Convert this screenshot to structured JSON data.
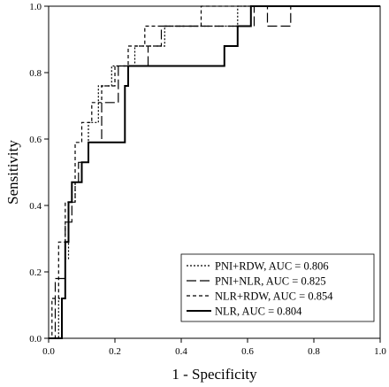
{
  "chart_data": {
    "type": "line",
    "xlabel": "1 - Specificity",
    "ylabel": "Sensitivity",
    "xlim": [
      0,
      1
    ],
    "ylim": [
      0,
      1
    ],
    "xticks": [
      "0.0",
      "0.2",
      "0.4",
      "0.6",
      "0.8",
      "1.0"
    ],
    "yticks": [
      "0.0",
      "0.2",
      "0.4",
      "0.6",
      "0.8",
      "1.0"
    ],
    "grid": false,
    "legend_position": "bottom-right",
    "series": [
      {
        "name": "PNI+RDW, AUC = 0.806",
        "dash": "dotted",
        "points": [
          [
            0,
            0
          ],
          [
            0.03,
            0
          ],
          [
            0.03,
            0.12
          ],
          [
            0.05,
            0.12
          ],
          [
            0.05,
            0.24
          ],
          [
            0.06,
            0.24
          ],
          [
            0.06,
            0.41
          ],
          [
            0.08,
            0.41
          ],
          [
            0.08,
            0.47
          ],
          [
            0.1,
            0.47
          ],
          [
            0.1,
            0.53
          ],
          [
            0.12,
            0.53
          ],
          [
            0.12,
            0.65
          ],
          [
            0.15,
            0.65
          ],
          [
            0.15,
            0.76
          ],
          [
            0.19,
            0.76
          ],
          [
            0.19,
            0.82
          ],
          [
            0.26,
            0.82
          ],
          [
            0.26,
            0.88
          ],
          [
            0.35,
            0.88
          ],
          [
            0.35,
            0.94
          ],
          [
            0.57,
            0.94
          ],
          [
            0.57,
            1.0
          ],
          [
            1.0,
            1.0
          ]
        ]
      },
      {
        "name": "PNI+NLR, AUC = 0.825",
        "dash": "long-dash",
        "points": [
          [
            0,
            0
          ],
          [
            0.02,
            0
          ],
          [
            0.02,
            0.18
          ],
          [
            0.05,
            0.18
          ],
          [
            0.05,
            0.35
          ],
          [
            0.07,
            0.35
          ],
          [
            0.07,
            0.47
          ],
          [
            0.09,
            0.47
          ],
          [
            0.09,
            0.53
          ],
          [
            0.12,
            0.53
          ],
          [
            0.12,
            0.59
          ],
          [
            0.16,
            0.59
          ],
          [
            0.16,
            0.71
          ],
          [
            0.21,
            0.71
          ],
          [
            0.21,
            0.82
          ],
          [
            0.3,
            0.82
          ],
          [
            0.3,
            0.88
          ],
          [
            0.34,
            0.88
          ],
          [
            0.34,
            0.94
          ],
          [
            0.62,
            0.94
          ],
          [
            0.62,
            1.0
          ],
          [
            0.66,
            1.0
          ],
          [
            0.66,
            0.94
          ],
          [
            0.73,
            0.94
          ],
          [
            0.73,
            1.0
          ],
          [
            1.0,
            1.0
          ]
        ]
      },
      {
        "name": "NLR+RDW, AUC = 0.854",
        "dash": "short-dash",
        "points": [
          [
            0,
            0
          ],
          [
            0.01,
            0
          ],
          [
            0.01,
            0.12
          ],
          [
            0.03,
            0.12
          ],
          [
            0.03,
            0.29
          ],
          [
            0.05,
            0.29
          ],
          [
            0.05,
            0.41
          ],
          [
            0.08,
            0.41
          ],
          [
            0.08,
            0.59
          ],
          [
            0.1,
            0.59
          ],
          [
            0.1,
            0.65
          ],
          [
            0.13,
            0.65
          ],
          [
            0.13,
            0.71
          ],
          [
            0.16,
            0.71
          ],
          [
            0.16,
            0.76
          ],
          [
            0.2,
            0.76
          ],
          [
            0.2,
            0.82
          ],
          [
            0.24,
            0.82
          ],
          [
            0.24,
            0.88
          ],
          [
            0.29,
            0.88
          ],
          [
            0.29,
            0.94
          ],
          [
            0.46,
            0.94
          ],
          [
            0.46,
            1.0
          ],
          [
            0.73,
            1.0
          ],
          [
            0.73,
            1.0
          ],
          [
            1.0,
            1.0
          ]
        ]
      },
      {
        "name": "NLR, AUC = 0.804",
        "dash": "solid",
        "points": [
          [
            0,
            0
          ],
          [
            0.04,
            0
          ],
          [
            0.04,
            0.12
          ],
          [
            0.05,
            0.12
          ],
          [
            0.05,
            0.29
          ],
          [
            0.06,
            0.29
          ],
          [
            0.06,
            0.41
          ],
          [
            0.07,
            0.41
          ],
          [
            0.07,
            0.47
          ],
          [
            0.1,
            0.47
          ],
          [
            0.1,
            0.53
          ],
          [
            0.12,
            0.53
          ],
          [
            0.12,
            0.59
          ],
          [
            0.16,
            0.59
          ],
          [
            0.16,
            0.59
          ],
          [
            0.23,
            0.59
          ],
          [
            0.23,
            0.76
          ],
          [
            0.24,
            0.76
          ],
          [
            0.24,
            0.82
          ],
          [
            0.53,
            0.82
          ],
          [
            0.53,
            0.88
          ],
          [
            0.57,
            0.88
          ],
          [
            0.57,
            0.94
          ],
          [
            0.61,
            0.94
          ],
          [
            0.61,
            1.0
          ],
          [
            1.0,
            1.0
          ]
        ]
      }
    ]
  }
}
